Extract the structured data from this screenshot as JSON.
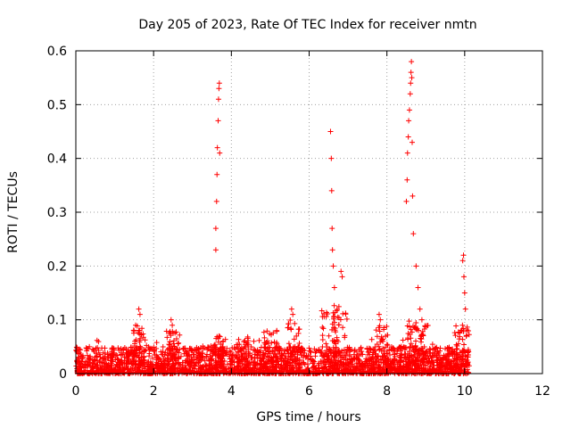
{
  "chart_data": {
    "type": "scatter",
    "title": "Day 205 of 2023, Rate Of TEC Index for receiver nmtn",
    "xlabel": "GPS time / hours",
    "ylabel": "ROTI / TECUs",
    "xlim": [
      0,
      12
    ],
    "ylim": [
      0,
      0.6
    ],
    "xticks": [
      "0",
      "2",
      "4",
      "6",
      "8",
      "10",
      "12"
    ],
    "yticks": [
      "0",
      "0.1",
      "0.2",
      "0.3",
      "0.4",
      "0.5",
      "0.6"
    ],
    "grid": true,
    "marker": "+",
    "color": "#ff0000",
    "series": [
      {
        "points": [
          [
            3.6,
            0.23
          ],
          [
            3.6,
            0.27
          ],
          [
            3.62,
            0.32
          ],
          [
            3.63,
            0.37
          ],
          [
            3.64,
            0.42
          ],
          [
            3.66,
            0.47
          ],
          [
            3.67,
            0.51
          ],
          [
            3.68,
            0.53
          ],
          [
            3.69,
            0.54
          ],
          [
            3.7,
            0.41
          ],
          [
            6.55,
            0.45
          ],
          [
            6.57,
            0.4
          ],
          [
            6.58,
            0.34
          ],
          [
            6.59,
            0.27
          ],
          [
            6.6,
            0.23
          ],
          [
            6.62,
            0.2
          ],
          [
            6.65,
            0.16
          ],
          [
            6.82,
            0.19
          ],
          [
            6.85,
            0.18
          ],
          [
            8.5,
            0.32
          ],
          [
            8.52,
            0.36
          ],
          [
            8.53,
            0.41
          ],
          [
            8.55,
            0.44
          ],
          [
            8.56,
            0.47
          ],
          [
            8.58,
            0.49
          ],
          [
            8.6,
            0.52
          ],
          [
            8.61,
            0.54
          ],
          [
            8.62,
            0.56
          ],
          [
            8.63,
            0.58
          ],
          [
            8.64,
            0.55
          ],
          [
            8.65,
            0.43
          ],
          [
            8.66,
            0.33
          ],
          [
            8.68,
            0.26
          ],
          [
            8.75,
            0.2
          ],
          [
            8.8,
            0.16
          ],
          [
            8.85,
            0.12
          ],
          [
            8.9,
            0.1
          ],
          [
            9.95,
            0.21
          ],
          [
            9.97,
            0.22
          ],
          [
            9.98,
            0.18
          ],
          [
            10.0,
            0.15
          ],
          [
            10.02,
            0.12
          ],
          [
            1.62,
            0.12
          ],
          [
            1.65,
            0.11
          ],
          [
            2.45,
            0.1
          ],
          [
            2.48,
            0.09
          ],
          [
            5.55,
            0.12
          ],
          [
            5.58,
            0.11
          ],
          [
            7.8,
            0.11
          ],
          [
            7.83,
            0.1
          ]
        ],
        "baseline": {
          "x_range": [
            0,
            10.1
          ],
          "typical_max": 0.05
        }
      }
    ]
  }
}
